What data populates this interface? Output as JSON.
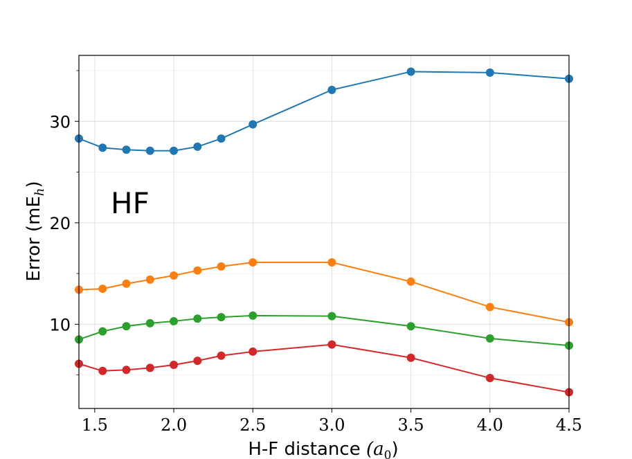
{
  "chart_data": {
    "type": "line",
    "title": "",
    "annotation": "HF",
    "xlabel": "H-F distance (a0)",
    "xlabel_main": "H-F distance ",
    "xlabel_sym": "(a",
    "xlabel_sub": "0",
    "xlabel_close": ")",
    "ylabel": "Error (mEh)",
    "ylabel_main": "Error (mE",
    "ylabel_sub": "h",
    "ylabel_close": ")",
    "xlim": [
      1.4,
      4.5
    ],
    "ylim": [
      1.7,
      36.5
    ],
    "xticks": [
      1.5,
      2.0,
      2.5,
      3.0,
      3.5,
      4.0,
      4.5
    ],
    "xtick_labels": [
      "1.5",
      "2.0",
      "2.5",
      "3.0",
      "3.5",
      "4.0",
      "4.5"
    ],
    "yticks": [
      10,
      20,
      30
    ],
    "ytick_labels": [
      "10",
      "20",
      "30"
    ],
    "yminor_ticks": [
      5,
      15,
      25,
      35
    ],
    "grid": true,
    "x": [
      1.4,
      1.55,
      1.7,
      1.85,
      2.0,
      2.15,
      2.3,
      2.5,
      3.0,
      3.5,
      4.0,
      4.5
    ],
    "series": [
      {
        "name": "series-1",
        "color": "#1f77b4",
        "values": [
          28.3,
          27.4,
          27.2,
          27.1,
          27.1,
          27.5,
          28.3,
          29.7,
          33.1,
          34.9,
          34.8,
          34.2
        ]
      },
      {
        "name": "series-2",
        "color": "#ff7f0e",
        "values": [
          13.4,
          13.5,
          14.0,
          14.4,
          14.8,
          15.3,
          15.7,
          16.1,
          16.1,
          14.2,
          11.7,
          10.2
        ]
      },
      {
        "name": "series-3",
        "color": "#2ca02c",
        "values": [
          8.5,
          9.3,
          9.8,
          10.1,
          10.3,
          10.55,
          10.7,
          10.85,
          10.8,
          9.8,
          8.6,
          7.9
        ]
      },
      {
        "name": "series-4",
        "color": "#d62728",
        "values": [
          6.1,
          5.4,
          5.5,
          5.7,
          6.0,
          6.4,
          6.9,
          7.3,
          8.0,
          6.7,
          4.7,
          3.3
        ]
      }
    ]
  }
}
